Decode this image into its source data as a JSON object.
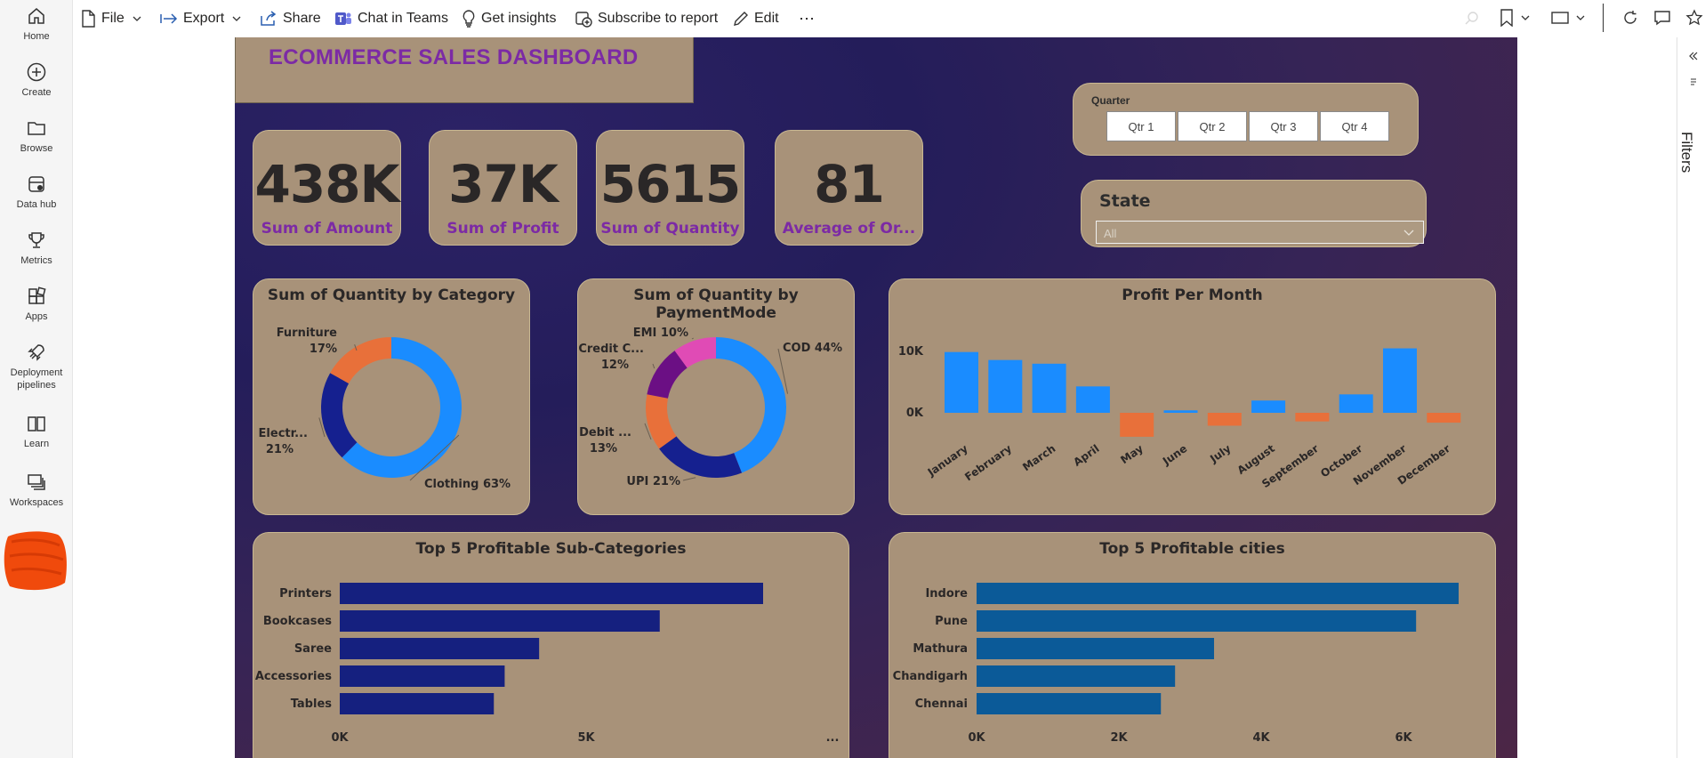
{
  "nav": [
    {
      "label": "Home",
      "icon": "home-icon"
    },
    {
      "label": "Create",
      "icon": "plus-circle-icon"
    },
    {
      "label": "Browse",
      "icon": "folder-icon"
    },
    {
      "label": "Data hub",
      "icon": "database-icon"
    },
    {
      "label": "Metrics",
      "icon": "trophy-icon"
    },
    {
      "label": "Apps",
      "icon": "apps-icon"
    },
    {
      "label": "Deployment pipelines",
      "icon": "rocket-icon"
    },
    {
      "label": "Learn",
      "icon": "book-icon"
    },
    {
      "label": "Workspaces",
      "icon": "workspaces-icon"
    }
  ],
  "toolbar": {
    "file": "File",
    "export": "Export",
    "share": "Share",
    "chat": "Chat in Teams",
    "insights": "Get insights",
    "subscribe": "Subscribe to report",
    "edit": "Edit",
    "more": "⋯"
  },
  "filters_label": "Filters",
  "report": {
    "title": "ECOMMERCE SALES DASHBOARD",
    "kpis": [
      {
        "value": "438K",
        "label": "Sum of Amount"
      },
      {
        "value": "37K",
        "label": "Sum of Profit"
      },
      {
        "value": "5615",
        "label": "Sum of Quantity"
      },
      {
        "value": "81",
        "label": "Average of  Or..."
      }
    ],
    "quarter_slicer": {
      "label": "Quarter",
      "options": [
        "Qtr 1",
        "Qtr 2",
        "Qtr 3",
        "Qtr 4"
      ]
    },
    "state_slicer": {
      "label": "State",
      "value": "All"
    }
  },
  "colors": {
    "accent_purple": "#7c2aa5",
    "card_bg": "#a89279",
    "positive_bar": "#1a8cff",
    "negative_bar": "#e8703a",
    "hbar_dark": "#15207f",
    "hbar_teal": "#0b5a98"
  },
  "chart_data": [
    {
      "type": "pie",
      "title": "Sum of Quantity by Category",
      "categories": [
        "Clothing",
        "Electr...",
        "Furniture"
      ],
      "values": [
        63,
        21,
        17
      ],
      "value_labels": [
        "63%",
        "21%",
        "17%"
      ],
      "colors": [
        "#1a8cff",
        "#15208f",
        "#e8703a"
      ]
    },
    {
      "type": "pie",
      "title": "Sum of Quantity by PaymentMode",
      "categories": [
        "COD",
        "UPI",
        "Debit ...",
        "Credit C...",
        "EMI"
      ],
      "values": [
        44,
        21,
        13,
        12,
        10
      ],
      "value_labels": [
        "44%",
        "21%",
        "13%",
        "12%",
        "10%"
      ],
      "colors": [
        "#1a8cff",
        "#15208f",
        "#e8703a",
        "#6b0f84",
        "#e04bb5"
      ]
    },
    {
      "type": "bar",
      "title": "Profit Per Month",
      "categories": [
        "January",
        "February",
        "March",
        "April",
        "May",
        "June",
        "July",
        "August",
        "September",
        "October",
        "November",
        "December"
      ],
      "values": [
        9900,
        8600,
        8000,
        4300,
        -3900,
        400,
        -2100,
        2000,
        -1400,
        3000,
        10500,
        -1600
      ],
      "yticks": [
        "10K",
        "0K"
      ],
      "ylim": [
        -5000,
        12000
      ]
    },
    {
      "type": "bar",
      "orientation": "horizontal",
      "title": "Top 5 Profitable Sub-Categories",
      "categories": [
        "Printers",
        "Bookcases",
        "Saree",
        "Accessories",
        "Tables"
      ],
      "values": [
        8600,
        6500,
        4050,
        3350,
        3130
      ],
      "xticks": [
        "0K",
        "5K",
        "..."
      ],
      "xlim": [
        0,
        10000
      ]
    },
    {
      "type": "bar",
      "orientation": "horizontal",
      "title": "Top 5 Profitable cities",
      "categories": [
        "Indore",
        "Pune",
        "Mathura",
        "Chandigarh",
        "Chennai"
      ],
      "values": [
        6800,
        6200,
        3350,
        2800,
        2600
      ],
      "xticks": [
        "0K",
        "2K",
        "4K",
        "6K"
      ],
      "xlim": [
        0,
        7500
      ]
    }
  ]
}
